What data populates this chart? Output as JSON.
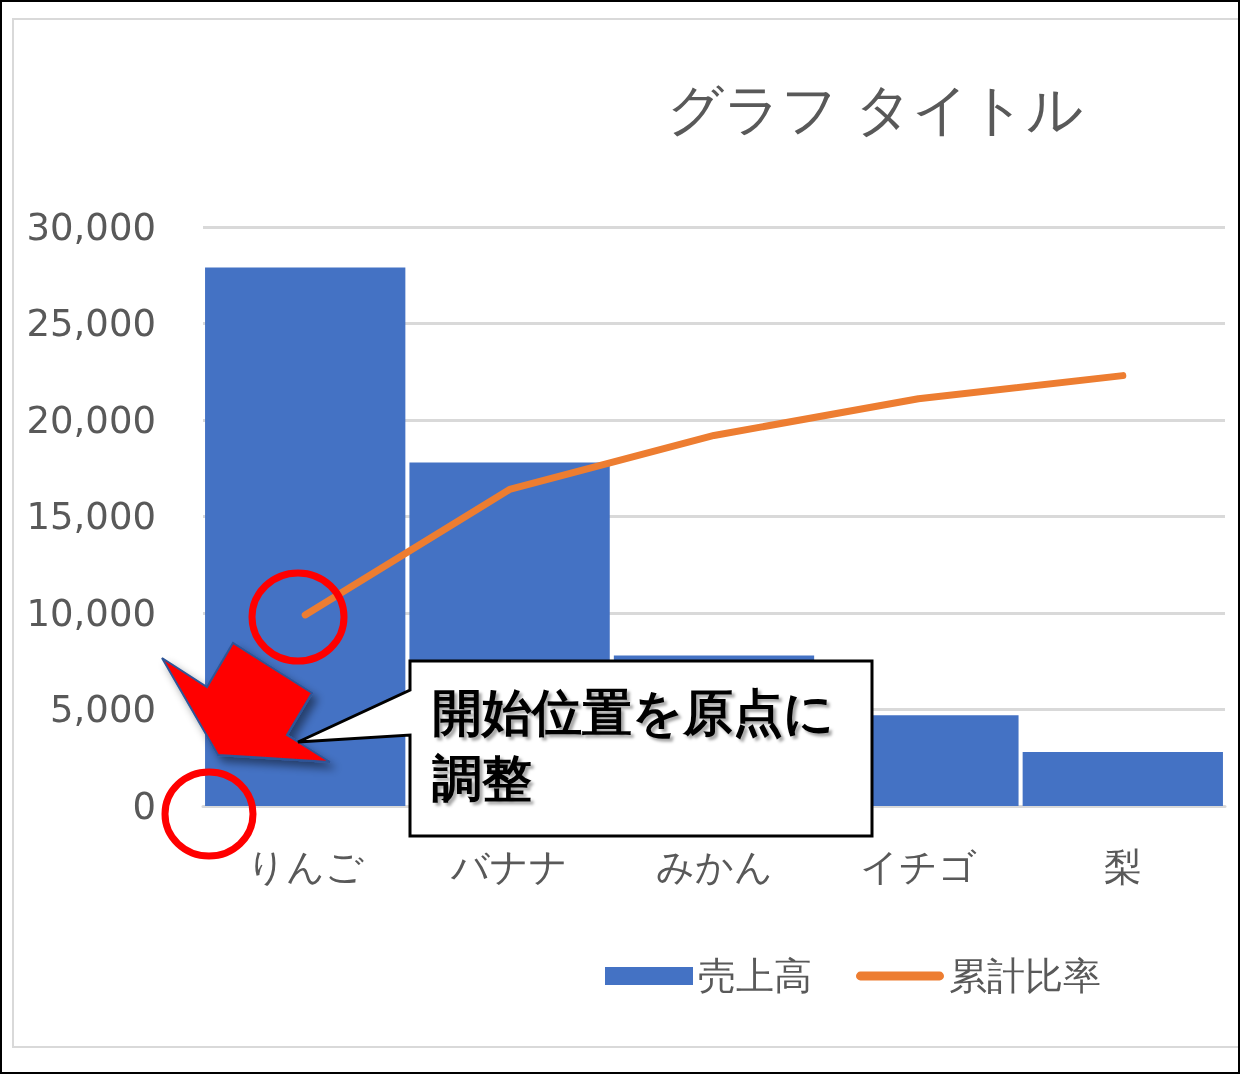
{
  "chart_data": {
    "type": "bar",
    "title": "グラフ タイトル",
    "categories": [
      "りんご",
      "バナナ",
      "みかん",
      "イチゴ",
      "梨"
    ],
    "series": [
      {
        "name": "売上高",
        "color": "#4472c4",
        "values": [
          27900,
          17800,
          7800,
          4700,
          2800
        ]
      },
      {
        "name": "累計比率",
        "type": "line",
        "color": "#ed7d31",
        "values": [
          9900,
          16400,
          19200,
          21100,
          22300
        ]
      }
    ],
    "ylim": [
      0,
      30000
    ],
    "yticks": [
      0,
      {
        "value": 5000,
        "label": "5,000"
      },
      {
        "value": 10000,
        "label": "10,000"
      },
      {
        "value": 15000,
        "label": "15,000"
      },
      {
        "value": 20000,
        "label": "20,000"
      },
      {
        "value": 25000,
        "label": "25,000"
      },
      {
        "value": 30000,
        "label": "30,000"
      }
    ],
    "grid": "y",
    "legend": "bottom",
    "marker": "none",
    "annotations": [
      "開始位置を原点に調整"
    ]
  }
}
